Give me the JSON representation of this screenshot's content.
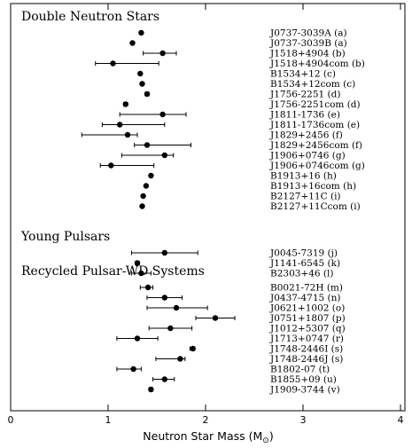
{
  "chart_data": {
    "type": "scatter",
    "xlabel": "Neutron Star Mass (M",
    "xlabel_sub": "⊙",
    "xlabel_close": ")",
    "xlim": [
      0,
      4
    ],
    "xticks": [
      0,
      1,
      2,
      3,
      4
    ],
    "xtick_labels": [
      "0",
      "1",
      "2",
      "3",
      "4"
    ],
    "grid": false,
    "groups": [
      {
        "label": "Double Neutron Stars",
        "pulsars": [
          {
            "name": "J0737-3039A (a)",
            "mass": 1.34,
            "lo": 1.34,
            "hi": 1.34
          },
          {
            "name": "J0737-3039B (a)",
            "mass": 1.25,
            "lo": 1.25,
            "hi": 1.25
          },
          {
            "name": "J1518+4904 (b)",
            "mass": 1.56,
            "lo": 1.36,
            "hi": 1.7
          },
          {
            "name": "J1518+4904com (b)",
            "mass": 1.05,
            "lo": 0.87,
            "hi": 1.52
          },
          {
            "name": "B1534+12 (c)",
            "mass": 1.33,
            "lo": 1.33,
            "hi": 1.33
          },
          {
            "name": "B1534+12com (c)",
            "mass": 1.35,
            "lo": 1.35,
            "hi": 1.35
          },
          {
            "name": "J1756-2251 (d)",
            "mass": 1.4,
            "lo": 1.38,
            "hi": 1.42
          },
          {
            "name": "J1756-2251com (d)",
            "mass": 1.18,
            "lo": 1.16,
            "hi": 1.2
          },
          {
            "name": "J1811-1736 (e)",
            "mass": 1.56,
            "lo": 1.12,
            "hi": 1.8
          },
          {
            "name": "J1811-1736com (e)",
            "mass": 1.12,
            "lo": 0.94,
            "hi": 1.58
          },
          {
            "name": "J1829+2456 (f)",
            "mass": 1.2,
            "lo": 0.73,
            "hi": 1.3
          },
          {
            "name": "J1829+2456com (f)",
            "mass": 1.4,
            "lo": 1.27,
            "hi": 1.85
          },
          {
            "name": "J1906+0746 (g)",
            "mass": 1.58,
            "lo": 1.14,
            "hi": 1.67
          },
          {
            "name": "J1906+0746com (g)",
            "mass": 1.03,
            "lo": 0.92,
            "hi": 1.47
          },
          {
            "name": "B1913+16 (h)",
            "mass": 1.44,
            "lo": 1.44,
            "hi": 1.44
          },
          {
            "name": "B1913+16com (h)",
            "mass": 1.39,
            "lo": 1.39,
            "hi": 1.39
          },
          {
            "name": "B2127+11C (i)",
            "mass": 1.36,
            "lo": 1.36,
            "hi": 1.36
          },
          {
            "name": "B2127+11Ccom (i)",
            "mass": 1.35,
            "lo": 1.35,
            "hi": 1.35
          }
        ]
      },
      {
        "label": "Young Pulsars",
        "pulsars": [
          {
            "name": "J0045-7319 (j)",
            "mass": 1.58,
            "lo": 1.24,
            "hi": 1.92
          },
          {
            "name": "J1141-6545 (k)",
            "mass": 1.3,
            "lo": 1.28,
            "hi": 1.32
          },
          {
            "name": "B2303+46 (l)",
            "mass": 1.34,
            "lo": 1.24,
            "hi": 1.44
          }
        ]
      },
      {
        "label": "Recycled Pulsar-WD Systems",
        "pulsars": [
          {
            "name": "B0021-72H (m)",
            "mass": 1.41,
            "lo": 1.33,
            "hi": 1.46
          },
          {
            "name": "J0437-4715 (n)",
            "mass": 1.58,
            "lo": 1.4,
            "hi": 1.76
          },
          {
            "name": "J0621+1002 (o)",
            "mass": 1.7,
            "lo": 1.4,
            "hi": 2.02
          },
          {
            "name": "J0751+1807 (p)",
            "mass": 2.1,
            "lo": 1.9,
            "hi": 2.3
          },
          {
            "name": "J1012+5307 (q)",
            "mass": 1.64,
            "lo": 1.42,
            "hi": 1.86
          },
          {
            "name": "J1713+0747 (r)",
            "mass": 1.3,
            "lo": 1.09,
            "hi": 1.51
          },
          {
            "name": "J1748-2446I (s)",
            "mass": 1.87,
            "lo": 1.84,
            "hi": 1.89
          },
          {
            "name": "J1748-2446J (s)",
            "mass": 1.74,
            "lo": 1.49,
            "hi": 1.79
          },
          {
            "name": "B1802-07 (t)",
            "mass": 1.26,
            "lo": 1.09,
            "hi": 1.34
          },
          {
            "name": "B1855+09 (u)",
            "mass": 1.58,
            "lo": 1.46,
            "hi": 1.68
          },
          {
            "name": "J1909-3744 (v)",
            "mass": 1.44,
            "lo": 1.42,
            "hi": 1.46
          }
        ]
      }
    ]
  }
}
